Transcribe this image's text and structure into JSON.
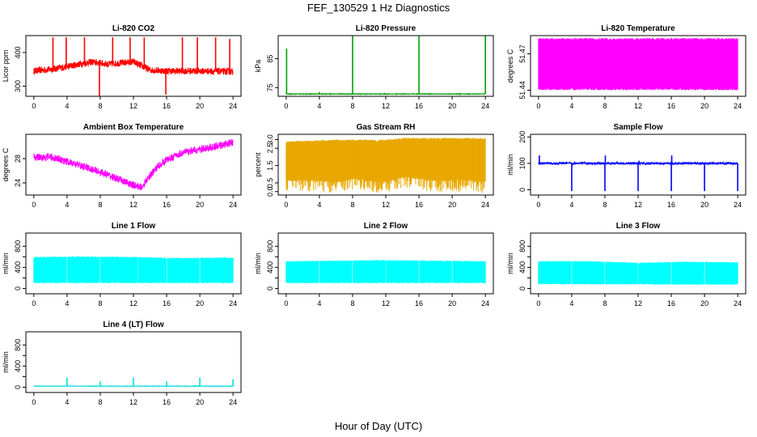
{
  "figure": {
    "title": "FEF_130529  1 Hz Diagnostics",
    "xlabel": "Hour of Day (UTC)"
  },
  "chart_data": [
    {
      "id": "co2",
      "type": "line",
      "title": "Li-820 CO2",
      "ylabel": "Licor ppm",
      "color": "#ff0000",
      "xlim": [
        0,
        24
      ],
      "xticks": [
        0,
        4,
        8,
        12,
        16,
        20,
        24
      ],
      "ylim": [
        270,
        450
      ],
      "yticks": [
        300,
        400
      ],
      "baseline": [
        [
          0,
          345
        ],
        [
          2,
          350
        ],
        [
          4,
          358
        ],
        [
          6,
          368
        ],
        [
          7,
          372
        ],
        [
          9,
          365
        ],
        [
          10,
          368
        ],
        [
          12,
          372
        ],
        [
          14,
          348
        ],
        [
          16,
          345
        ],
        [
          20,
          345
        ],
        [
          24,
          343
        ]
      ],
      "noise": 10,
      "spikes": [
        {
          "x": 2.3,
          "y": 445
        },
        {
          "x": 3.9,
          "y": 445
        },
        {
          "x": 6.1,
          "y": 445
        },
        {
          "x": 7.9,
          "y": 270
        },
        {
          "x": 9.5,
          "y": 445
        },
        {
          "x": 11.6,
          "y": 445
        },
        {
          "x": 13.3,
          "y": 445
        },
        {
          "x": 15.9,
          "y": 275
        },
        {
          "x": 17.9,
          "y": 445
        },
        {
          "x": 19.7,
          "y": 445
        },
        {
          "x": 21.9,
          "y": 445
        },
        {
          "x": 23.6,
          "y": 440
        }
      ]
    },
    {
      "id": "press",
      "type": "line",
      "title": "Li-820 Pressure",
      "ylabel": "kPa",
      "color": "#00a000",
      "xlim": [
        0,
        24
      ],
      "xticks": [
        0,
        4,
        8,
        12,
        16,
        20,
        24
      ],
      "ylim": [
        72,
        93
      ],
      "yticks": [
        75,
        85
      ],
      "baseline": [
        [
          0,
          72.8
        ],
        [
          24,
          72.8
        ]
      ],
      "noise": 0.1,
      "spikes": [
        {
          "x": 0.05,
          "y": 88.5
        },
        {
          "x": 8,
          "y": 93
        },
        {
          "x": 16,
          "y": 93
        },
        {
          "x": 24,
          "y": 93
        },
        {
          "x": 4,
          "y": 73.5
        }
      ]
    },
    {
      "id": "temp820",
      "type": "band",
      "title": "Li-820 Temperature",
      "ylabel": "degrees C",
      "color": "#ff00ff",
      "xlim": [
        0,
        24
      ],
      "xticks": [
        0,
        4,
        8,
        12,
        16,
        20,
        24
      ],
      "ylim": [
        51.435,
        51.485
      ],
      "yticks": [
        51.44,
        51.47
      ],
      "lower": [
        [
          0,
          51.44
        ],
        [
          24,
          51.44
        ]
      ],
      "upper": [
        [
          0,
          51.483
        ],
        [
          24,
          51.483
        ]
      ]
    },
    {
      "id": "ambient",
      "type": "line",
      "title": "Ambient Box Temperature",
      "ylabel": "degrees C",
      "color": "#ff00ff",
      "xlim": [
        0,
        24
      ],
      "xticks": [
        0,
        4,
        8,
        12,
        16,
        20,
        24
      ],
      "ylim": [
        22,
        32
      ],
      "yticks": [
        24,
        28
      ],
      "baseline": [
        [
          0,
          28.2
        ],
        [
          2,
          28.3
        ],
        [
          4,
          27.5
        ],
        [
          6,
          26.7
        ],
        [
          8,
          25.8
        ],
        [
          10,
          24.7
        ],
        [
          12,
          23.6
        ],
        [
          13,
          23.3
        ],
        [
          14,
          25.2
        ],
        [
          15,
          26.8
        ],
        [
          16,
          27.8
        ],
        [
          18,
          29
        ],
        [
          20,
          29.5
        ],
        [
          22,
          30
        ],
        [
          24,
          30.7
        ]
      ],
      "noise": 0.6,
      "spikes": []
    },
    {
      "id": "rh",
      "type": "band",
      "title": "Gas Stream RH",
      "ylabel": "percent",
      "color": "#e8a800",
      "xlim": [
        0,
        24
      ],
      "xticks": [
        0,
        4,
        8,
        12,
        16,
        20,
        24
      ],
      "ylim": [
        -0.2,
        3.3
      ],
      "yticks": [
        0,
        0.5,
        1.5,
        2.5,
        3.0
      ],
      "ytick_labels": [
        "0.0",
        "0.5",
        "1.5",
        "2.5",
        "3.0"
      ],
      "lower": [
        [
          0,
          0.6
        ],
        [
          4,
          0.6
        ],
        [
          6,
          0.5
        ],
        [
          8,
          0.7
        ],
        [
          12,
          0.5
        ],
        [
          14,
          0.8
        ],
        [
          18,
          0.6
        ],
        [
          22,
          0.6
        ],
        [
          24,
          0.5
        ]
      ],
      "upper": [
        [
          0,
          2.9
        ],
        [
          6,
          3.0
        ],
        [
          12,
          3.0
        ],
        [
          14,
          3.1
        ],
        [
          18,
          3.1
        ],
        [
          24,
          3.1
        ]
      ],
      "dips": 0.2
    },
    {
      "id": "sflow",
      "type": "line",
      "title": "Sample Flow",
      "ylabel": "ml/min",
      "color": "#0000ff",
      "xlim": [
        0,
        24
      ],
      "xticks": [
        0,
        4,
        8,
        12,
        16,
        20,
        24
      ],
      "ylim": [
        -20,
        210
      ],
      "yticks": [
        0,
        100,
        200
      ],
      "baseline": [
        [
          0,
          100
        ],
        [
          24,
          100
        ]
      ],
      "noise": 4,
      "spikes": [
        {
          "x": 0.1,
          "y": 130
        },
        {
          "x": 4,
          "y": -5
        },
        {
          "x": 8,
          "y": -5
        },
        {
          "x": 8.05,
          "y": 130
        },
        {
          "x": 12,
          "y": -5
        },
        {
          "x": 12.1,
          "y": 110
        },
        {
          "x": 16,
          "y": -5
        },
        {
          "x": 16.05,
          "y": 130
        },
        {
          "x": 20,
          "y": -5
        },
        {
          "x": 24,
          "y": -5
        }
      ]
    },
    {
      "id": "l1",
      "type": "band",
      "title": "Line 1 Flow",
      "ylabel": "ml/min",
      "color": "#00ffff",
      "xlim": [
        0,
        24
      ],
      "xticks": [
        0,
        4,
        8,
        12,
        16,
        20,
        24
      ],
      "ylim": [
        -100,
        1050
      ],
      "yticks": [
        0,
        200,
        400,
        600,
        800
      ],
      "ytick_show": [
        0,
        400,
        800
      ],
      "lower": [
        [
          0,
          100
        ],
        [
          24,
          100
        ]
      ],
      "upper": [
        [
          0,
          600
        ],
        [
          6,
          610
        ],
        [
          12,
          600
        ],
        [
          18,
          580
        ],
        [
          24,
          590
        ]
      ],
      "gaps": [
        4,
        8,
        12.5,
        16,
        20
      ]
    },
    {
      "id": "l2",
      "type": "band",
      "title": "Line 2 Flow",
      "ylabel": "ml/min",
      "color": "#00ffff",
      "xlim": [
        0,
        24
      ],
      "xticks": [
        0,
        4,
        8,
        12,
        16,
        20,
        24
      ],
      "ylim": [
        -100,
        1050
      ],
      "yticks": [
        0,
        200,
        400,
        600,
        800
      ],
      "ytick_show": [
        0,
        400,
        800
      ],
      "lower": [
        [
          0,
          100
        ],
        [
          24,
          100
        ]
      ],
      "upper": [
        [
          0,
          520
        ],
        [
          6,
          530
        ],
        [
          12,
          540
        ],
        [
          18,
          530
        ],
        [
          24,
          520
        ]
      ],
      "gaps": [
        4,
        8,
        12,
        16,
        20
      ]
    },
    {
      "id": "l3",
      "type": "band",
      "title": "Line 3 Flow",
      "ylabel": "ml/min",
      "color": "#00ffff",
      "xlim": [
        0,
        24
      ],
      "xticks": [
        0,
        4,
        8,
        12,
        16,
        20,
        24
      ],
      "ylim": [
        -100,
        1050
      ],
      "yticks": [
        0,
        200,
        400,
        600,
        800
      ],
      "ytick_show": [
        0,
        400,
        800
      ],
      "lower": [
        [
          0,
          80
        ],
        [
          24,
          70
        ]
      ],
      "upper": [
        [
          0,
          520
        ],
        [
          6,
          520
        ],
        [
          12,
          490
        ],
        [
          18,
          510
        ],
        [
          24,
          500
        ]
      ],
      "gaps": [
        4,
        8,
        12,
        16,
        20
      ]
    },
    {
      "id": "l4",
      "type": "line",
      "title": "Line 4 (LT) Flow",
      "ylabel": "ml/min",
      "color": "#00dddd",
      "xlim": [
        0,
        24
      ],
      "xticks": [
        0,
        4,
        8,
        12,
        16,
        20,
        24
      ],
      "ylim": [
        -100,
        1050
      ],
      "yticks": [
        0,
        200,
        400,
        600,
        800
      ],
      "ytick_show": [
        0,
        400,
        800
      ],
      "baseline": [
        [
          0,
          20
        ],
        [
          24,
          20
        ]
      ],
      "noise": 4,
      "spikes": [
        {
          "x": 4,
          "y": 180
        },
        {
          "x": 8,
          "y": 110
        },
        {
          "x": 12,
          "y": 180
        },
        {
          "x": 16,
          "y": 110
        },
        {
          "x": 20,
          "y": 180
        },
        {
          "x": 24,
          "y": 150
        }
      ]
    }
  ]
}
